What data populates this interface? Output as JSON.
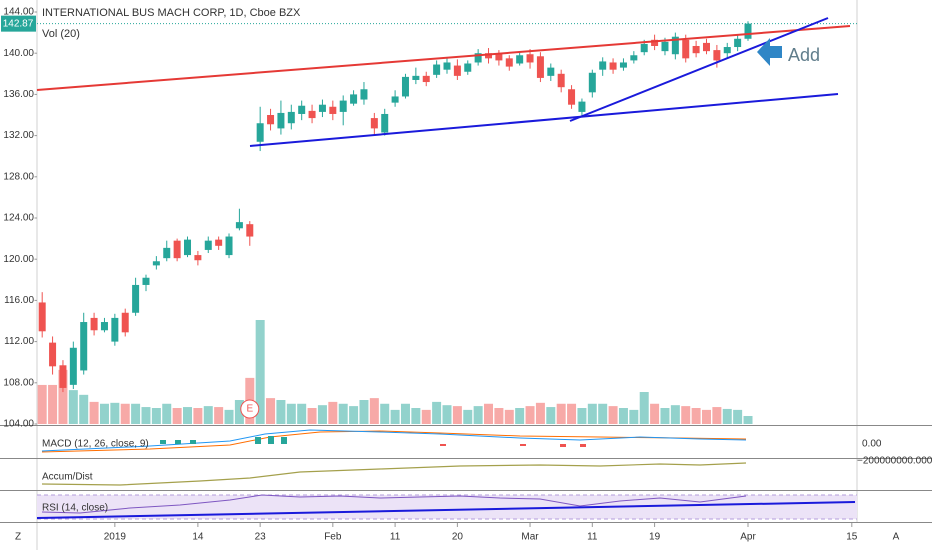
{
  "chart_data": {
    "type": "candlestick",
    "title": "INTERNATIONAL BUS MACH CORP, 1D, Cboe BZX",
    "volume_label": "Vol (20)",
    "up_color": "#26a69a",
    "down_color": "#ef5350",
    "categories": [
      null,
      null,
      null,
      null,
      null,
      null,
      null,
      "2019",
      null,
      null,
      null,
      null,
      null,
      null,
      null,
      "14",
      null,
      null,
      null,
      null,
      null,
      "23",
      null,
      null,
      null,
      null,
      null,
      null,
      "Feb",
      null,
      null,
      null,
      null,
      null,
      "11",
      null,
      null,
      null,
      null,
      null,
      "20",
      null,
      null,
      null,
      null,
      null,
      null,
      "Mar",
      null,
      null,
      null,
      null,
      null,
      "11",
      null,
      null,
      null,
      null,
      null,
      "19",
      null,
      null,
      null,
      null,
      null,
      null,
      null,
      null,
      "Apr",
      null,
      null,
      null,
      null,
      null,
      null,
      null,
      null,
      null,
      "15"
    ],
    "open": [
      115.8,
      111.9,
      109.7,
      107.8,
      109.2,
      114.3,
      113.1,
      112.0,
      114.8,
      114.8,
      117.5,
      119.4,
      120.1,
      121.8,
      120.4,
      120.4,
      120.9,
      121.9,
      120.4,
      123.0,
      123.4,
      131.4,
      134.0,
      132.7,
      133.2,
      134.1,
      134.4,
      134.3,
      134.8,
      134.3,
      135.1,
      135.5,
      133.7,
      132.3,
      135.2,
      135.8,
      137.4,
      137.8,
      137.9,
      138.4,
      138.8,
      138.2,
      139.1,
      140.0,
      139.9,
      139.5,
      139.0,
      139.9,
      139.7,
      137.8,
      138.0,
      136.5,
      134.3,
      136.2,
      138.4,
      139.1,
      138.6,
      139.3,
      140.1,
      141.3,
      140.2,
      139.9,
      141.3,
      140.7,
      141.0,
      140.3,
      140.0,
      140.6,
      141.4,
      null,
      null,
      null,
      null,
      null,
      null,
      null,
      null,
      null,
      null
    ],
    "high": [
      116.8,
      112.5,
      110.2,
      112.0,
      114.8,
      114.8,
      114.3,
      114.7,
      115.2,
      118.2,
      118.5,
      120.3,
      121.8,
      122.0,
      122.2,
      120.8,
      122.2,
      122.2,
      122.5,
      124.9,
      123.7,
      134.8,
      134.6,
      135.4,
      135.0,
      135.4,
      135.0,
      135.5,
      135.4,
      135.9,
      136.4,
      137.2,
      134.2,
      134.6,
      136.4,
      138.0,
      138.6,
      138.2,
      139.3,
      139.6,
      139.4,
      139.3,
      140.4,
      140.5,
      140.3,
      139.8,
      140.2,
      140.4,
      140.1,
      139.0,
      138.4,
      136.9,
      135.6,
      138.4,
      139.6,
      139.5,
      139.5,
      140.2,
      141.3,
      141.8,
      141.5,
      142.0,
      141.8,
      141.2,
      141.4,
      140.8,
      141.0,
      141.8,
      143.1,
      null,
      null,
      null,
      null,
      null,
      null,
      null,
      null,
      null,
      null
    ],
    "low": [
      112.4,
      108.8,
      107.1,
      107.4,
      108.8,
      112.6,
      112.9,
      111.6,
      112.5,
      114.5,
      116.9,
      119.0,
      119.8,
      119.8,
      120.2,
      119.4,
      120.6,
      120.9,
      120.1,
      122.8,
      121.3,
      130.5,
      132.5,
      132.1,
      132.6,
      133.5,
      133.2,
      133.8,
      133.5,
      133.0,
      134.9,
      135.0,
      132.0,
      132.0,
      134.8,
      135.6,
      137.0,
      136.8,
      137.6,
      138.0,
      137.4,
      137.9,
      138.8,
      139.0,
      138.8,
      138.3,
      138.8,
      138.5,
      137.2,
      137.3,
      136.2,
      134.6,
      133.9,
      135.7,
      137.8,
      138.0,
      138.3,
      139.0,
      139.8,
      140.3,
      139.8,
      139.4,
      139.1,
      139.6,
      139.9,
      138.6,
      139.5,
      140.2,
      141.2,
      null,
      null,
      null,
      null,
      null,
      null,
      null,
      null,
      null,
      null
    ],
    "close": [
      113.0,
      109.6,
      107.5,
      111.4,
      113.9,
      113.1,
      113.9,
      114.3,
      112.9,
      117.5,
      118.2,
      119.8,
      121.1,
      120.1,
      121.9,
      119.9,
      121.8,
      121.3,
      122.2,
      123.6,
      122.2,
      133.2,
      133.1,
      134.2,
      134.3,
      134.9,
      133.7,
      135.0,
      134.1,
      135.4,
      136.0,
      136.5,
      132.7,
      134.1,
      135.8,
      137.7,
      137.8,
      137.2,
      138.9,
      139.1,
      137.8,
      139.0,
      140.0,
      139.5,
      139.3,
      138.7,
      139.8,
      139.1,
      137.6,
      138.6,
      136.7,
      135.0,
      135.3,
      138.1,
      139.2,
      138.4,
      139.1,
      139.8,
      140.9,
      140.7,
      141.1,
      141.6,
      139.5,
      140.0,
      140.2,
      139.3,
      140.6,
      141.4,
      142.87,
      null,
      null,
      null,
      null,
      null,
      null,
      null,
      null,
      null,
      null
    ],
    "volume": [
      8.3,
      8.3,
      11.5,
      7.2,
      6.2,
      4.7,
      4.3,
      4.5,
      4.3,
      4.3,
      3.6,
      3.4,
      4.3,
      3.4,
      3.6,
      3.4,
      3.8,
      3.6,
      3.0,
      5.1,
      9.8,
      22.1,
      5.5,
      5.1,
      4.3,
      4.3,
      3.4,
      4.0,
      4.7,
      4.3,
      3.8,
      5.1,
      5.5,
      4.3,
      3.0,
      4.3,
      3.4,
      3.0,
      4.7,
      4.0,
      3.8,
      3.0,
      3.8,
      4.3,
      3.4,
      3.0,
      3.4,
      3.8,
      4.5,
      3.6,
      4.3,
      4.3,
      3.4,
      4.3,
      4.3,
      3.8,
      3.4,
      3.0,
      6.8,
      4.3,
      3.4,
      4.0,
      3.8,
      3.4,
      3.0,
      3.6,
      3.2,
      3.0,
      1.7,
      null,
      null,
      null,
      null,
      null,
      null,
      null,
      null,
      null,
      null
    ],
    "ylim": [
      104,
      144
    ],
    "yticks": [
      {
        "value": 104,
        "label": "104.00"
      },
      {
        "value": 108,
        "label": "108.00"
      },
      {
        "value": 112,
        "label": "112.00"
      },
      {
        "value": 116,
        "label": "116.00"
      },
      {
        "value": 120,
        "label": "120.00"
      },
      {
        "value": 124,
        "label": "124.00"
      },
      {
        "value": 128,
        "label": "128.00"
      },
      {
        "value": 132,
        "label": "132.00"
      },
      {
        "value": 136,
        "label": "136.00"
      },
      {
        "value": 140,
        "label": "140.00"
      },
      {
        "value": 144,
        "label": "144.00"
      }
    ],
    "annotations": {
      "note": "Add",
      "earnings": "E"
    },
    "indicators": {
      "macd": {
        "label": "MACD (12, 26, close, 9)",
        "tick": {
          "value": 0,
          "label": "0.00"
        }
      },
      "accum_dist": {
        "label": "Accum/Dist",
        "tick": {
          "value": -200000000,
          "label": "−200000000.0000"
        }
      },
      "rsi": {
        "label": "RSI (14, close)"
      }
    },
    "buttons": {
      "left": "Z",
      "right": "A"
    }
  }
}
